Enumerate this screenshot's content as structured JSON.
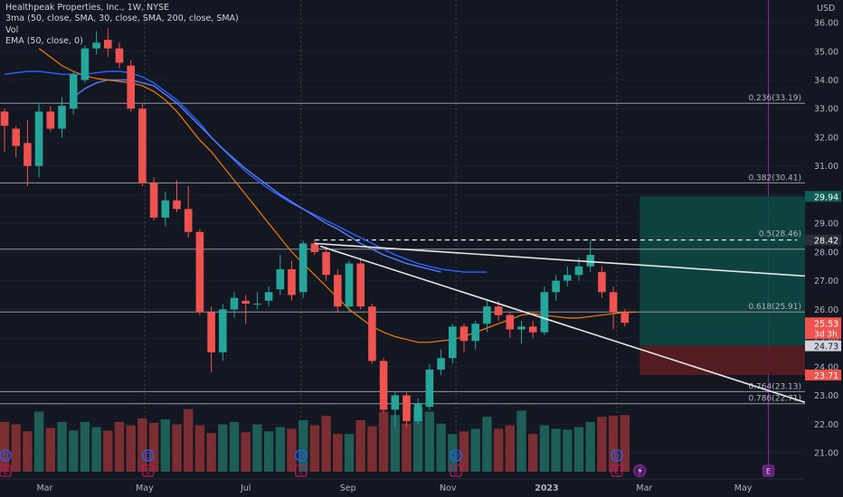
{
  "colors": {
    "background": "#131722",
    "up": "#26a69a",
    "down": "#ef5350",
    "vol_up": "#1f5d57",
    "vol_down": "#7a2e31",
    "sma30": "#2962ff",
    "sma200": "#5b7cff",
    "ema50": "#f57c00",
    "fib_line": "#9598a1",
    "trend_line": "#e6e6e6",
    "grid_dotted": "#3d4a3f",
    "event_line": "#8e24aa",
    "dividend_badge": "#2962ff",
    "earnings_badge": "#c2185b",
    "target_zone": "#0d4a45",
    "stop_zone": "#5a1d22",
    "axis_text": "#b2b5be"
  },
  "legend": {
    "title": "Healthpeak Properties, Inc., 1W, NYSE",
    "line2": "3ma (50, close, SMA, 30, close, SMA, 200, close, SMA)",
    "line3": "Vol",
    "line4": "EMA (50, close, 0)"
  },
  "chart_data": {
    "type": "candlestick",
    "title": "Healthpeak Properties, Inc., 1W, NYSE",
    "currency": "USD",
    "ylim": [
      20.3,
      37.0
    ],
    "y_ticks": [
      21.0,
      22.0,
      23.0,
      24.0,
      25.0,
      26.0,
      27.0,
      28.0,
      29.0,
      30.0,
      31.0,
      32.0,
      33.0,
      34.0,
      35.0,
      36.0
    ],
    "x_labels": [
      "Mar",
      "May",
      "Jul",
      "Sep",
      "Nov",
      "2023",
      "Mar",
      "May"
    ],
    "x_label_weeks": [
      3.5,
      12.2,
      21.0,
      29.9,
      38.6,
      47.2,
      55.7,
      64.3
    ],
    "total_weeks": 74,
    "candles": [
      {
        "o": 32.9,
        "h": 33.0,
        "l": 31.5,
        "c": 32.4
      },
      {
        "o": 32.3,
        "h": 32.4,
        "l": 31.3,
        "c": 31.7
      },
      {
        "o": 31.8,
        "h": 32.6,
        "l": 30.3,
        "c": 31.0
      },
      {
        "o": 31.0,
        "h": 33.2,
        "l": 30.6,
        "c": 32.9
      },
      {
        "o": 32.9,
        "h": 33.1,
        "l": 32.2,
        "c": 32.3
      },
      {
        "o": 32.3,
        "h": 33.4,
        "l": 32.0,
        "c": 33.1
      },
      {
        "o": 33.0,
        "h": 34.3,
        "l": 32.8,
        "c": 34.2
      },
      {
        "o": 34.0,
        "h": 35.2,
        "l": 33.9,
        "c": 35.1
      },
      {
        "o": 35.1,
        "h": 35.7,
        "l": 34.9,
        "c": 35.3
      },
      {
        "o": 35.4,
        "h": 35.8,
        "l": 34.8,
        "c": 35.1
      },
      {
        "o": 35.1,
        "h": 35.3,
        "l": 34.4,
        "c": 34.6
      },
      {
        "o": 34.5,
        "h": 34.7,
        "l": 32.9,
        "c": 33.0
      },
      {
        "o": 33.0,
        "h": 33.2,
        "l": 30.3,
        "c": 30.4
      },
      {
        "o": 30.4,
        "h": 30.6,
        "l": 29.1,
        "c": 29.2
      },
      {
        "o": 29.2,
        "h": 30.1,
        "l": 28.9,
        "c": 29.8
      },
      {
        "o": 29.8,
        "h": 30.5,
        "l": 29.4,
        "c": 29.5
      },
      {
        "o": 29.5,
        "h": 30.3,
        "l": 28.5,
        "c": 28.7
      },
      {
        "o": 28.7,
        "h": 28.8,
        "l": 25.8,
        "c": 25.9
      },
      {
        "o": 25.9,
        "h": 26.1,
        "l": 23.8,
        "c": 24.5
      },
      {
        "o": 24.5,
        "h": 26.2,
        "l": 24.2,
        "c": 26.0
      },
      {
        "o": 26.0,
        "h": 26.6,
        "l": 25.7,
        "c": 26.4
      },
      {
        "o": 26.3,
        "h": 26.5,
        "l": 25.5,
        "c": 26.2
      },
      {
        "o": 26.2,
        "h": 26.6,
        "l": 26.0,
        "c": 26.2
      },
      {
        "o": 26.3,
        "h": 26.8,
        "l": 26.1,
        "c": 26.6
      },
      {
        "o": 26.7,
        "h": 27.9,
        "l": 26.5,
        "c": 27.4
      },
      {
        "o": 27.4,
        "h": 27.7,
        "l": 26.3,
        "c": 26.5
      },
      {
        "o": 26.6,
        "h": 28.4,
        "l": 26.4,
        "c": 28.3
      },
      {
        "o": 28.3,
        "h": 28.4,
        "l": 27.9,
        "c": 28.0
      },
      {
        "o": 28.0,
        "h": 28.2,
        "l": 27.0,
        "c": 27.2
      },
      {
        "o": 27.2,
        "h": 27.4,
        "l": 25.9,
        "c": 26.1
      },
      {
        "o": 26.1,
        "h": 27.7,
        "l": 25.9,
        "c": 27.6
      },
      {
        "o": 27.6,
        "h": 27.8,
        "l": 26.0,
        "c": 26.1
      },
      {
        "o": 26.1,
        "h": 26.2,
        "l": 24.1,
        "c": 24.2
      },
      {
        "o": 24.2,
        "h": 24.3,
        "l": 22.4,
        "c": 22.5
      },
      {
        "o": 22.5,
        "h": 23.1,
        "l": 21.9,
        "c": 23.0
      },
      {
        "o": 23.0,
        "h": 23.1,
        "l": 21.9,
        "c": 22.1
      },
      {
        "o": 22.1,
        "h": 22.9,
        "l": 22.0,
        "c": 22.7
      },
      {
        "o": 22.6,
        "h": 24.1,
        "l": 22.5,
        "c": 23.9
      },
      {
        "o": 23.9,
        "h": 24.6,
        "l": 23.7,
        "c": 24.3
      },
      {
        "o": 24.3,
        "h": 25.5,
        "l": 24.1,
        "c": 25.4
      },
      {
        "o": 25.4,
        "h": 25.5,
        "l": 24.5,
        "c": 24.9
      },
      {
        "o": 24.9,
        "h": 25.6,
        "l": 24.6,
        "c": 25.5
      },
      {
        "o": 25.5,
        "h": 26.3,
        "l": 25.2,
        "c": 26.1
      },
      {
        "o": 26.1,
        "h": 26.3,
        "l": 25.6,
        "c": 25.8
      },
      {
        "o": 25.8,
        "h": 25.9,
        "l": 25.0,
        "c": 25.3
      },
      {
        "o": 25.3,
        "h": 25.6,
        "l": 24.8,
        "c": 25.4
      },
      {
        "o": 25.4,
        "h": 25.6,
        "l": 25.0,
        "c": 25.2
      },
      {
        "o": 25.2,
        "h": 26.8,
        "l": 25.1,
        "c": 26.6
      },
      {
        "o": 26.6,
        "h": 27.2,
        "l": 26.3,
        "c": 27.0
      },
      {
        "o": 27.0,
        "h": 27.5,
        "l": 26.8,
        "c": 27.2
      },
      {
        "o": 27.2,
        "h": 27.8,
        "l": 27.0,
        "c": 27.5
      },
      {
        "o": 27.5,
        "h": 28.4,
        "l": 27.3,
        "c": 27.9
      },
      {
        "o": 27.3,
        "h": 27.5,
        "l": 26.4,
        "c": 26.6
      },
      {
        "o": 26.6,
        "h": 26.8,
        "l": 25.3,
        "c": 25.9
      },
      {
        "o": 25.9,
        "h": 26.0,
        "l": 25.4,
        "c": 25.53
      }
    ],
    "volume_scale_max": 100,
    "volumes": [
      58,
      55,
      47,
      70,
      51,
      58,
      48,
      58,
      52,
      48,
      58,
      54,
      62,
      57,
      61,
      55,
      73,
      54,
      45,
      55,
      58,
      46,
      55,
      47,
      52,
      50,
      60,
      54,
      65,
      44,
      44,
      60,
      53,
      70,
      66,
      56,
      75,
      70,
      56,
      44,
      47,
      50,
      64,
      50,
      54,
      71,
      44,
      54,
      50,
      49,
      52,
      58,
      64,
      65,
      66
    ],
    "sma30": [
      34.2,
      34.25,
      34.3,
      34.3,
      34.25,
      34.2,
      34.2,
      34.2,
      34.25,
      34.3,
      34.3,
      34.25,
      34.1,
      33.9,
      33.6,
      33.3,
      32.9,
      32.5,
      32.0,
      31.6,
      31.2,
      30.8,
      30.5,
      30.2,
      29.95,
      29.7,
      29.5,
      29.3,
      29.1,
      28.9,
      28.7,
      28.5,
      28.3,
      28.1,
      27.9,
      27.75,
      27.6,
      27.5,
      27.4,
      27.35,
      27.3,
      27.3,
      27.3
    ],
    "sma30_start": 0,
    "sma_second": [
      33.4,
      33.7,
      33.9,
      34.0,
      34.0,
      34.0,
      33.9,
      33.8,
      33.5,
      33.2,
      32.8,
      32.4,
      32.0,
      31.6,
      31.25,
      30.9,
      30.6,
      30.3,
      30.0,
      29.75,
      29.5,
      29.25,
      29.0,
      28.8,
      28.55,
      28.3,
      28.1,
      27.9,
      27.75,
      27.6,
      27.5,
      27.4,
      27.3
    ],
    "sma_second_start": 6,
    "ema50": [
      35.1,
      34.8,
      34.5,
      34.3,
      34.15,
      34.05,
      34.0,
      33.95,
      33.9,
      33.8,
      33.6,
      33.3,
      32.9,
      32.4,
      31.9,
      31.5,
      31.0,
      30.5,
      30.0,
      29.5,
      29.0,
      28.5,
      28.0,
      27.6,
      27.2,
      26.8,
      26.4,
      26.0,
      25.7,
      25.4,
      25.2,
      25.05,
      24.95,
      24.85,
      24.85,
      24.9,
      24.95,
      25.05,
      25.2,
      25.35,
      25.5,
      25.65,
      25.8,
      25.85,
      25.8,
      25.75,
      25.7,
      25.7,
      25.75,
      25.8,
      25.85,
      25.9,
      25.9
    ],
    "ema50_start": 3,
    "fib_levels": [
      {
        "label": "0.236(33.19)",
        "price": 33.19
      },
      {
        "label": "0.382(30.41)",
        "price": 30.41
      },
      {
        "label": "0.5(28.46)",
        "price": 28.46
      },
      {
        "label": "0.618(25.91)",
        "price": 25.91
      },
      {
        "label": "0.764(23.13)",
        "price": 23.13
      },
      {
        "label": "0.786(22.71)",
        "price": 22.71
      }
    ],
    "fib_extra_line": 28.1,
    "trend_upper": {
      "w1": 27.0,
      "p1": 28.3,
      "w2": 74,
      "p2": 27.05
    },
    "trend_lower": {
      "w1": 27.5,
      "p1": 28.2,
      "w2": 74,
      "p2": 22.2
    },
    "dashed_high": {
      "w1": 27,
      "w2": 69,
      "price": 28.42
    },
    "position_box": {
      "w1": 55.3,
      "w2": 69.8,
      "entry": 24.73,
      "target": 29.94,
      "stop": 23.71
    },
    "dotted_vlines": [
      12.2,
      25.8,
      39.3,
      53.3
    ],
    "event_vline": 66.5,
    "dividend_markers": [
      0,
      12.5,
      25.8,
      39.3,
      53.3
    ],
    "earnings_markers": [
      0,
      12.5,
      25.8,
      39.3,
      53.3,
      66.5
    ],
    "lightning_marker": 55.3,
    "price_labels": [
      {
        "text": "29.94",
        "price": 29.94,
        "color": "#0e5c55",
        "text_color": "#ffffff"
      },
      {
        "text": "28.42",
        "price": 28.42,
        "color": "#2a2e39",
        "text_color": "#ffffff"
      },
      {
        "text": "25.53",
        "price": 25.53,
        "color": "#ef5350",
        "text_color": "#ffffff",
        "sub": "3d 3h"
      },
      {
        "text": "24.73",
        "price": 24.73,
        "color": "#d1d4dc",
        "text_color": "#131722"
      },
      {
        "text": "23.71",
        "price": 23.71,
        "color": "#ef5350",
        "text_color": "#ffffff"
      }
    ],
    "dividend_letter": "D",
    "earnings_letter": "E"
  }
}
